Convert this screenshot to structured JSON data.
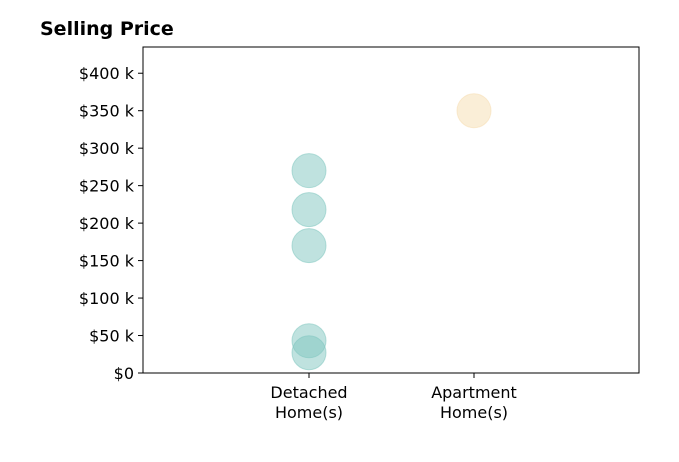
{
  "chart_data": {
    "type": "scatter",
    "title": "Selling Price",
    "xlabel": "",
    "ylabel": "",
    "categories": [
      "Detached\nHome(s)",
      "Apartment\nHome(s)"
    ],
    "ylim": [
      0,
      435
    ],
    "yticks": [
      0,
      50,
      100,
      150,
      200,
      250,
      300,
      350,
      400
    ],
    "ytick_labels": [
      "$0",
      "$50 k",
      "$100 k",
      "$150 k",
      "$200 k",
      "$250 k",
      "$300 k",
      "$350 k",
      "$400 k"
    ],
    "grid": false,
    "legend": "none",
    "series": [
      {
        "category": "Detached\nHome(s)",
        "color": "#7fc6bf",
        "values": [
          27,
          43,
          170,
          218,
          270
        ]
      },
      {
        "category": "Apartment\nHome(s)",
        "color": "#f5ddb0",
        "values": [
          350
        ]
      }
    ]
  }
}
